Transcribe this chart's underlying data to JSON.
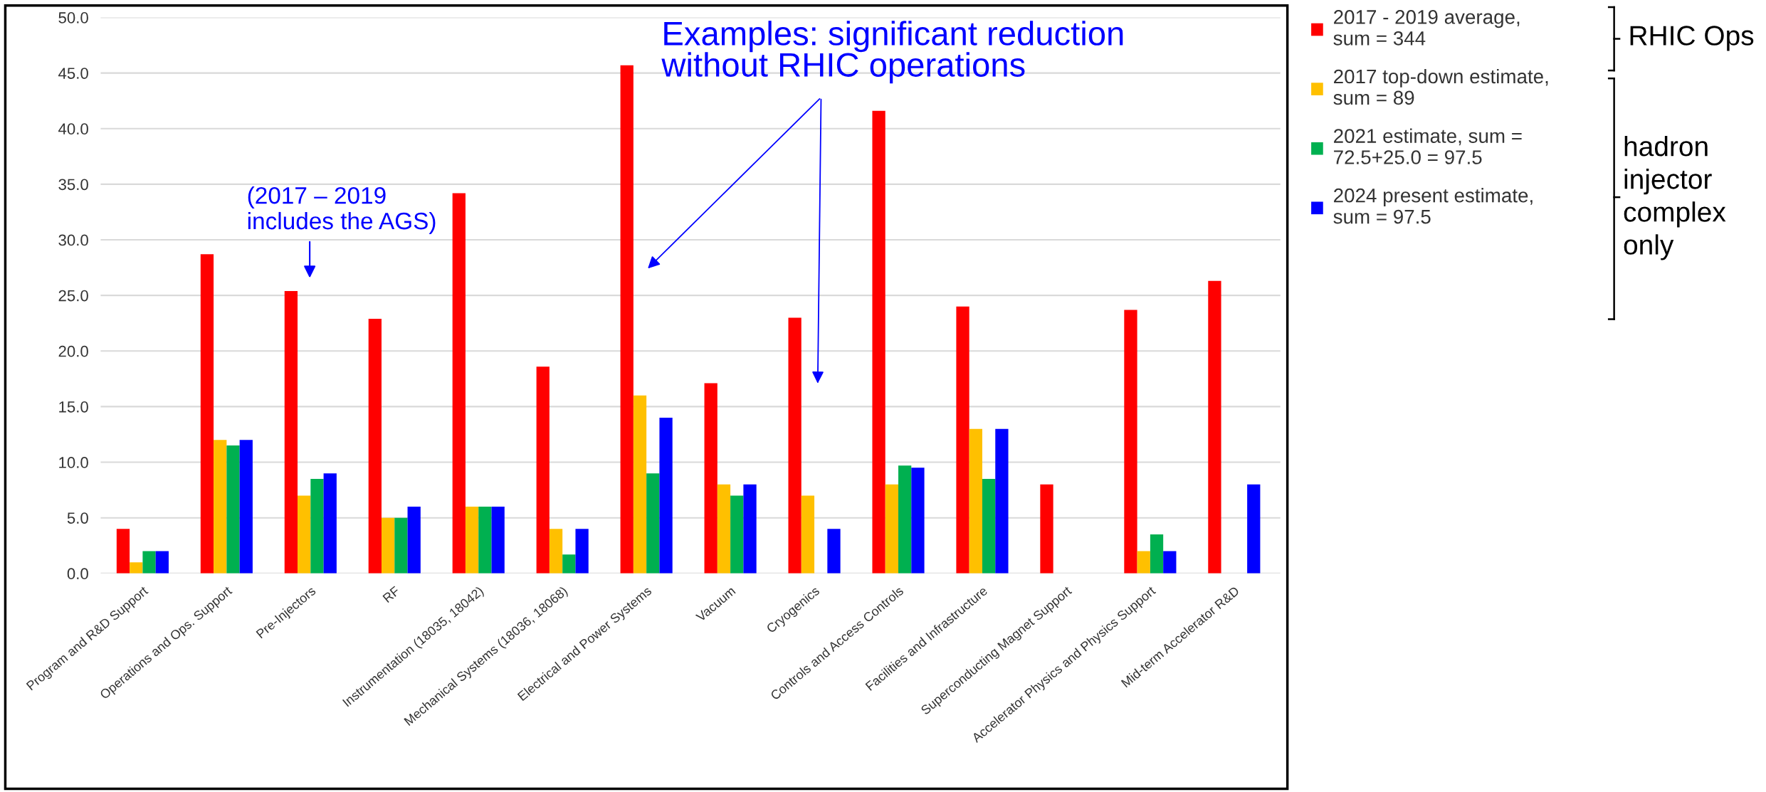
{
  "chart_data": {
    "type": "bar",
    "categories": [
      "Program and R&D Support",
      "Operations and Ops. Support",
      "Pre-Injectors",
      "RF",
      "Instrumentation (18035, 18042)",
      "Mechanical Systems (18036, 18068)",
      "Electrical and Power Systems",
      "Vacuum",
      "Cryogenics",
      "Controls and Access Controls",
      "Facilities and Infrastructure",
      "Superconducting Magnet Support",
      "Accelerator Physics and Physics Support",
      "Mid-term Accelerator R&D"
    ],
    "series": [
      {
        "name": "2017 - 2019 average,\nsum = 344",
        "color": "#ff0000",
        "values": [
          4.0,
          28.7,
          25.4,
          22.9,
          34.2,
          18.6,
          45.7,
          17.1,
          23.0,
          41.6,
          24.0,
          8.0,
          23.7,
          26.3
        ]
      },
      {
        "name": "2017 top-down estimate,\nsum = 89",
        "color": "#ffc000",
        "values": [
          1.0,
          12.0,
          7.0,
          5.0,
          6.0,
          4.0,
          16.0,
          8.0,
          7.0,
          8.0,
          13.0,
          null,
          2.0,
          null
        ]
      },
      {
        "name": "2021 estimate, sum =\n72.5+25.0 = 97.5",
        "color": "#00b050",
        "values": [
          2.0,
          11.5,
          8.5,
          5.0,
          6.0,
          1.7,
          9.0,
          7.0,
          null,
          9.7,
          8.5,
          null,
          3.5,
          null
        ]
      },
      {
        "name": "2024 present estimate,\nsum = 97.5",
        "color": "#0000ff",
        "values": [
          2.0,
          12.0,
          9.0,
          6.0,
          6.0,
          4.0,
          14.0,
          8.0,
          4.0,
          9.5,
          13.0,
          null,
          2.0,
          8.0
        ]
      }
    ],
    "ylim": [
      0,
      50
    ],
    "yticks": [
      {
        "value": 0,
        "label": "0.0"
      },
      {
        "value": 5,
        "label": "5.0"
      },
      {
        "value": 10,
        "label": "10.0"
      },
      {
        "value": 15,
        "label": "15.0"
      },
      {
        "value": 20,
        "label": "20.0"
      },
      {
        "value": 25,
        "label": "25.0"
      },
      {
        "value": 30,
        "label": "30.0"
      },
      {
        "value": 35,
        "label": "35.0"
      },
      {
        "value": 40,
        "label": "40.0"
      },
      {
        "value": 45,
        "label": "45.0"
      },
      {
        "value": 50,
        "label": "50.0"
      }
    ],
    "grid": "y",
    "legend": "right",
    "annotations": [
      "(2017 – 2019\nincludes the AGS)",
      "Examples: significant reduction\nwithout RHIC operations",
      "RHIC Ops",
      "hadron\ninjector\ncomplex\nonly"
    ]
  }
}
